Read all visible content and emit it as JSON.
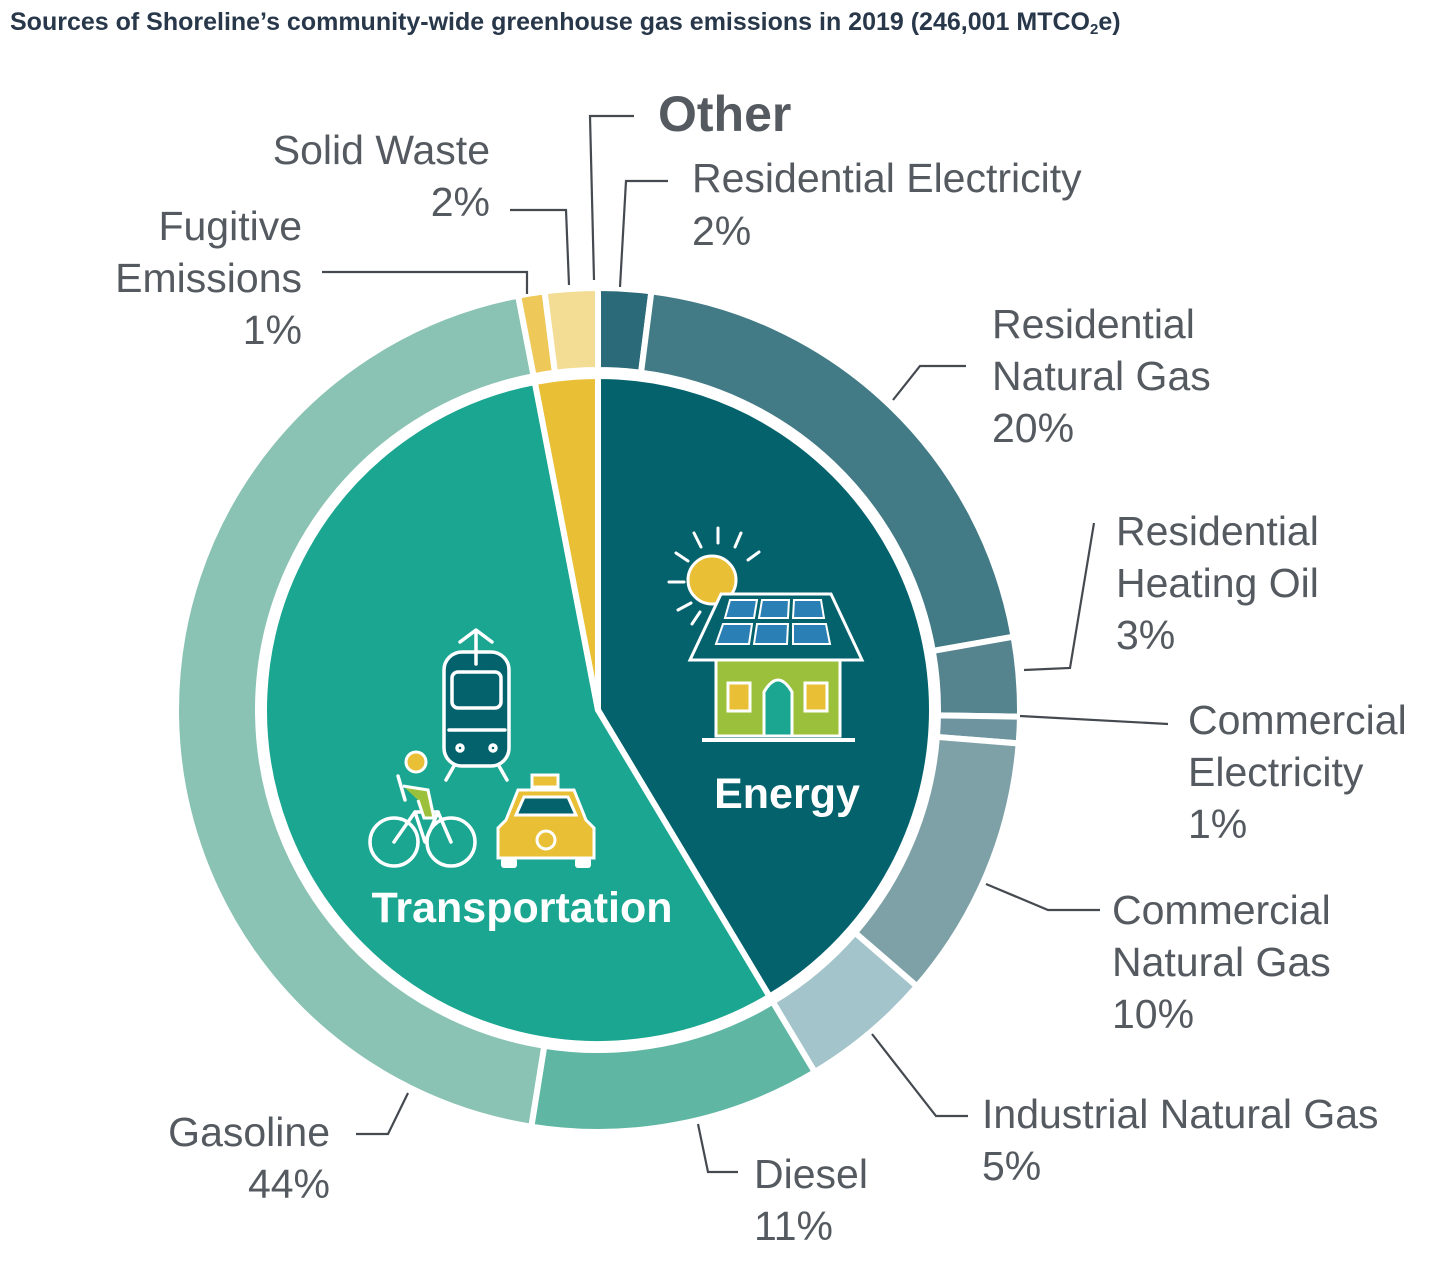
{
  "title": {
    "main": "Sources of Shoreline’s community-wide greenhouse gas emissions in 2019 (246,001 MTCO",
    "sub": "2",
    "end": "e)"
  },
  "chart_data": {
    "type": "pie",
    "variant": "nested donut",
    "groups": [
      {
        "name": "Energy",
        "value": 41,
        "color": "#03626c"
      },
      {
        "name": "Transportation",
        "value": 55,
        "color": "#1aa691"
      },
      {
        "name": "Other",
        "value": 3,
        "color": "#e8bf35"
      }
    ],
    "slices": [
      {
        "group": "Energy",
        "name": "Residential Electricity",
        "label_lines": [
          "Residential Electricity"
        ],
        "value": 2,
        "percent": "2%",
        "color": "#2b6a78"
      },
      {
        "group": "Energy",
        "name": "Residential Natural Gas",
        "label_lines": [
          "Residential",
          "Natural Gas"
        ],
        "value": 20,
        "percent": "20%",
        "color": "#427a85"
      },
      {
        "group": "Energy",
        "name": "Residential Heating Oil",
        "label_lines": [
          "Residential",
          "Heating Oil"
        ],
        "value": 3,
        "percent": "3%",
        "color": "#55838e"
      },
      {
        "group": "Energy",
        "name": "Commercial Electricity",
        "label_lines": [
          "Commercial",
          "Electricity"
        ],
        "value": 1,
        "percent": "1%",
        "color": "#6e959f"
      },
      {
        "group": "Energy",
        "name": "Commercial Natural Gas",
        "label_lines": [
          "Commercial",
          "Natural Gas"
        ],
        "value": 10,
        "percent": "10%",
        "color": "#7ea1a8"
      },
      {
        "group": "Energy",
        "name": "Industrial Natural Gas",
        "label_lines": [
          "Industrial Natural Gas"
        ],
        "value": 5,
        "percent": "5%",
        "color": "#a3c4ca"
      },
      {
        "group": "Transportation",
        "name": "Diesel",
        "label_lines": [
          "Diesel"
        ],
        "value": 11,
        "percent": "11%",
        "color": "#5fb6a3"
      },
      {
        "group": "Transportation",
        "name": "Gasoline",
        "label_lines": [
          "Gasoline"
        ],
        "value": 44,
        "percent": "44%",
        "color": "#8ac3b3"
      },
      {
        "group": "Other",
        "name": "Fugitive Emissions",
        "label_lines": [
          "Fugitive",
          "Emissions"
        ],
        "value": 1,
        "percent": "1%",
        "color": "#efc85a"
      },
      {
        "group": "Other",
        "name": "Solid Waste",
        "label_lines": [
          "Solid Waste"
        ],
        "value": 2,
        "percent": "2%",
        "color": "#f3dc93"
      }
    ],
    "icons": [
      "energy-house-solar-icon",
      "transportation-vehicles-icon"
    ]
  }
}
